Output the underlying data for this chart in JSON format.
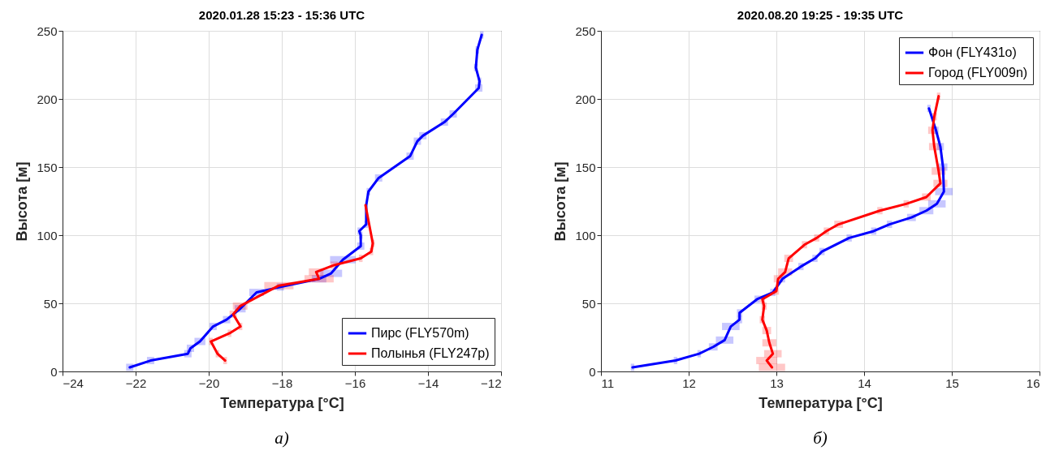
{
  "chart_data": [
    {
      "type": "line",
      "title": "2020.01.28 15:23 - 15:36 UTC",
      "xlabel": "Температура [°C]",
      "ylabel": "Высота [м]",
      "annotations": [
        "а)"
      ],
      "xlim": [
        -24,
        -12
      ],
      "xticks": [
        -24,
        -22,
        -20,
        -18,
        -16,
        -14,
        -12
      ],
      "ylim": [
        0,
        250
      ],
      "yticks": [
        0,
        50,
        100,
        150,
        200,
        250
      ],
      "grid": true,
      "legend": "bottom right",
      "series": [
        {
          "name": "Пирс (FLY570m)",
          "color": "#0000ff",
          "x": [
            -22.16,
            -21.59,
            -20.57,
            -20.5,
            -20.24,
            -19.88,
            -19.51,
            -19.14,
            -18.69,
            -18.04,
            -16.98,
            -16.65,
            -16.33,
            -15.84,
            -15.84,
            -15.88,
            -15.69,
            -15.69,
            -15.63,
            -15.35,
            -14.49,
            -14.29,
            -14.14,
            -13.55,
            -13.31,
            -12.61,
            -12.59,
            -12.69,
            -12.65,
            -12.53
          ],
          "values": [
            3,
            8,
            13,
            17,
            22,
            33,
            38,
            46,
            58,
            62,
            68,
            72,
            82,
            92,
            100,
            103,
            108,
            122,
            132,
            142,
            158,
            169,
            173,
            183,
            189,
            208,
            213,
            223,
            236,
            247
          ],
          "xerrors": [
            0.1,
            0.1,
            0.1,
            0.1,
            0.15,
            0.1,
            0.1,
            0.15,
            0.2,
            0.1,
            0.2,
            0.3,
            0.35,
            0.1,
            0.05,
            0.05,
            0.05,
            null,
            0.05,
            0.1,
            0.1,
            0.1,
            0.1,
            0.1,
            0.1,
            0.1,
            0.05,
            0.05,
            0.05,
            0.05
          ]
        },
        {
          "name": "Полынья (FLY247p)",
          "color": "#ff0000",
          "x": [
            -19.55,
            -19.76,
            -19.94,
            -19.43,
            -19.13,
            -19.33,
            -19.14,
            -18.08,
            -16.98,
            -17.06,
            -16.57,
            -15.84,
            -15.55,
            -15.51,
            -15.71
          ],
          "values": [
            8,
            13,
            22,
            28,
            33,
            42,
            48,
            63,
            68,
            73,
            78,
            83,
            88,
            94,
            122
          ],
          "xerrors": [
            0.05,
            0.05,
            0.05,
            0.05,
            0.05,
            0.1,
            0.2,
            0.4,
            0.4,
            0.2,
            0.1,
            0.05,
            0.05,
            0.05,
            null
          ]
        }
      ]
    },
    {
      "type": "line",
      "title": "2020.08.20 19:25 - 19:35 UTC",
      "xlabel": "Температура [°C]",
      "ylabel": "Высота [м]",
      "annotations": [
        "б)"
      ],
      "xlim": [
        11,
        16
      ],
      "xticks": [
        11,
        12,
        13,
        14,
        15,
        16
      ],
      "ylim": [
        0,
        250
      ],
      "yticks": [
        0,
        50,
        100,
        150,
        200,
        250
      ],
      "grid": true,
      "legend": "top right",
      "series": [
        {
          "name": "Фон (FLY431o)",
          "color": "#0000ff",
          "x": [
            11.36,
            11.85,
            12.12,
            12.28,
            12.41,
            12.48,
            12.58,
            12.58,
            12.78,
            12.96,
            13.07,
            13.28,
            13.44,
            13.52,
            13.83,
            14.11,
            14.29,
            14.54,
            14.71,
            14.83,
            14.91,
            14.9,
            14.87,
            14.82,
            14.74
          ],
          "values": [
            3,
            8,
            13,
            18,
            23,
            33,
            38,
            43,
            53,
            58,
            68,
            77,
            83,
            88,
            98,
            103,
            108,
            113,
            118,
            123,
            132,
            150,
            165,
            177,
            193
          ],
          "xerrors": [
            0.02,
            0.02,
            0.02,
            0.05,
            0.1,
            0.1,
            0.03,
            0.03,
            0.03,
            0.03,
            0.03,
            0.03,
            0.03,
            0.03,
            0.03,
            0.03,
            0.03,
            0.05,
            0.08,
            0.1,
            0.1,
            0.05,
            0.04,
            0.03,
            0.02
          ]
        },
        {
          "name": "Город (FLY009n)",
          "color": "#ff0000",
          "x": [
            12.95,
            12.89,
            12.96,
            12.92,
            12.89,
            12.84,
            12.86,
            12.84,
            13.0,
            13.02,
            13.1,
            13.14,
            13.32,
            13.46,
            13.57,
            13.71,
            14.18,
            14.48,
            14.71,
            14.87,
            14.85,
            14.8,
            14.78,
            14.8,
            14.85
          ],
          "values": [
            3,
            8,
            13,
            21,
            30,
            38,
            48,
            53,
            59,
            68,
            73,
            83,
            93,
            98,
            103,
            108,
            118,
            123,
            128,
            138,
            147,
            165,
            177,
            187,
            202
          ],
          "xerrors": [
            0.15,
            0.12,
            0.1,
            0.08,
            0.05,
            0.03,
            0.03,
            0.03,
            0.03,
            0.05,
            0.08,
            0.05,
            0.03,
            0.03,
            0.03,
            0.05,
            0.03,
            0.03,
            0.05,
            0.08,
            0.08,
            0.06,
            0.05,
            0.03,
            0.02
          ]
        }
      ]
    }
  ]
}
